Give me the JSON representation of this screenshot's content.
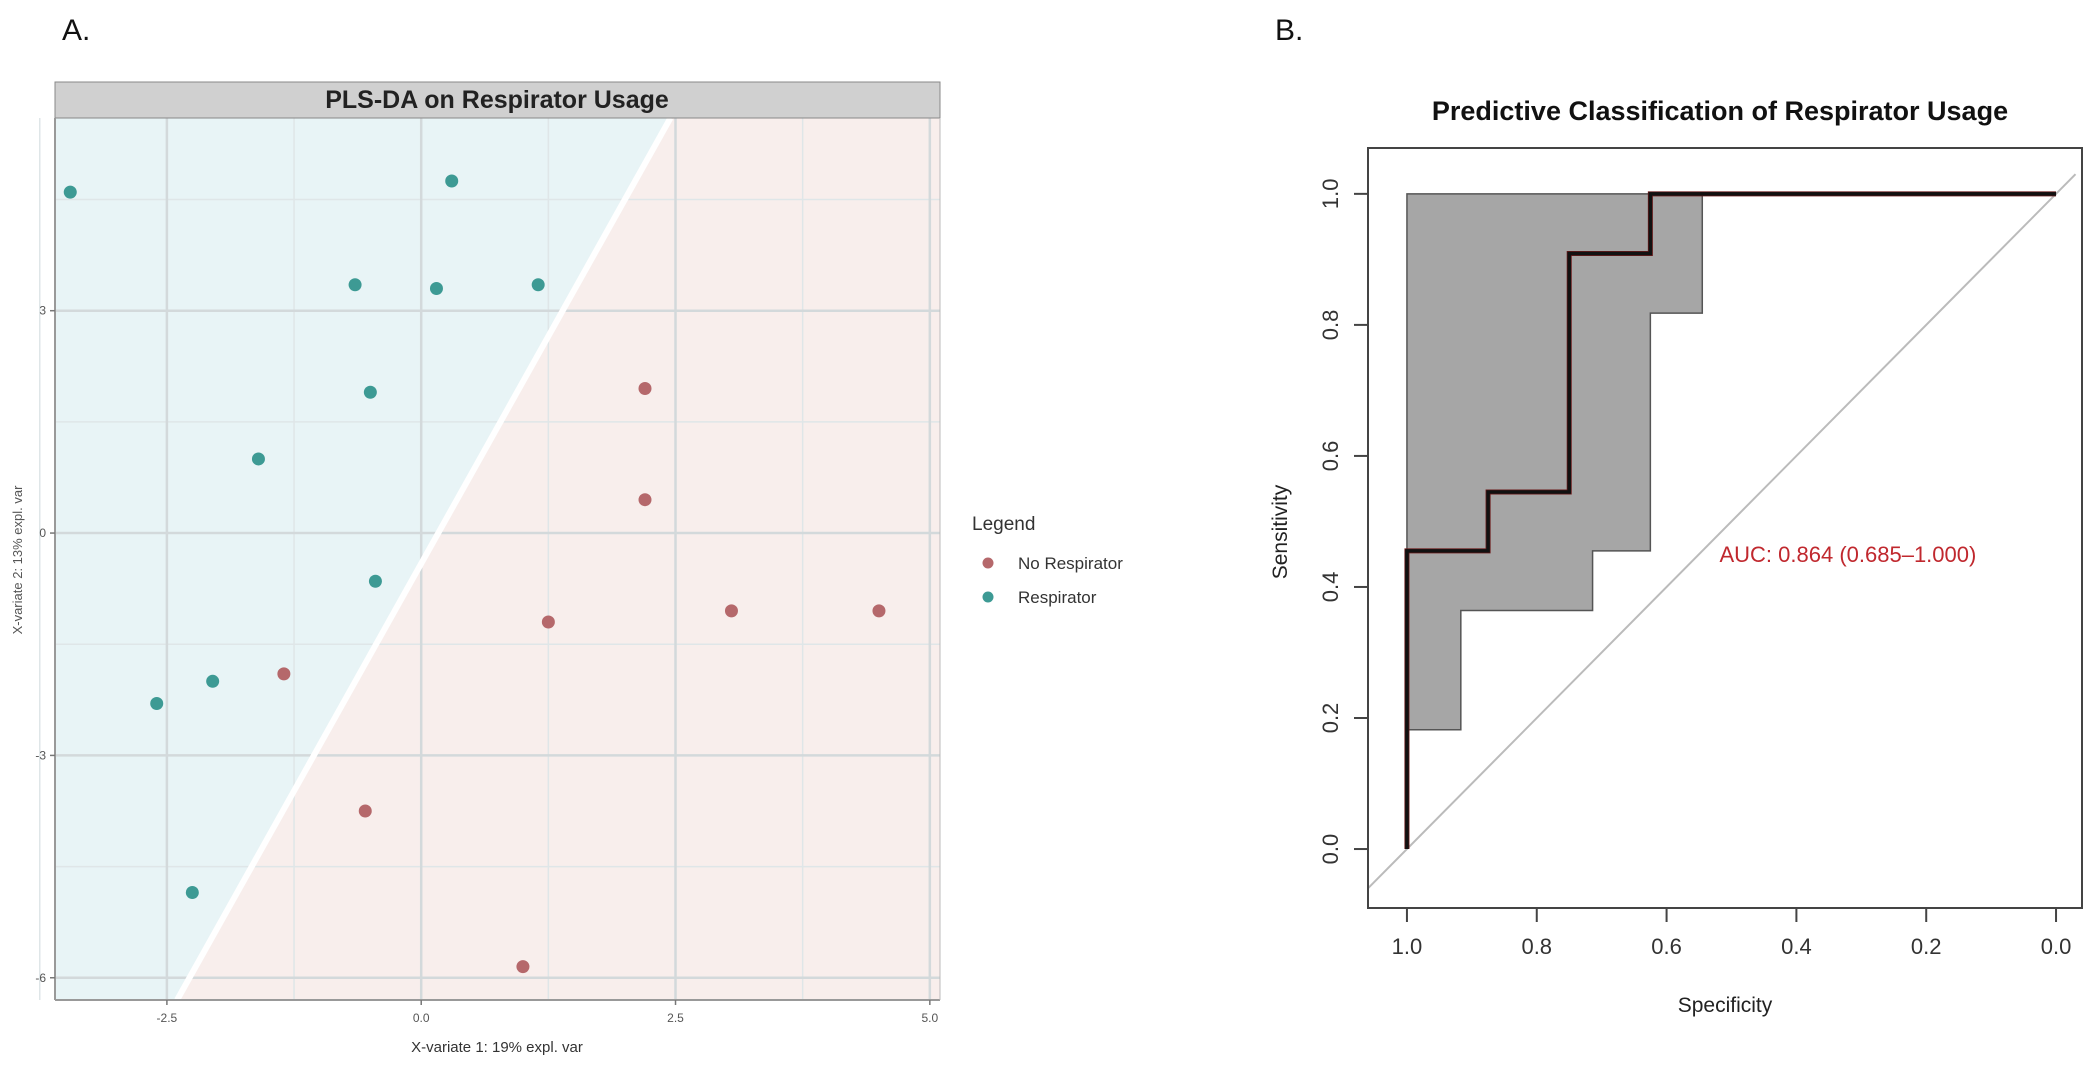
{
  "figure": {
    "panel_a_label": "A.",
    "panel_b_label": "B."
  },
  "chart_data": [
    {
      "type": "scatter",
      "title": "PLS-DA on Respirator Usage",
      "xlabel": "X-variate 1: 19% expl. var",
      "ylabel": "X-variate 2: 13% expl. var",
      "xlim": [
        -3.6,
        5.1
      ],
      "ylim": [
        -6.3,
        5.6
      ],
      "xticks": [
        -2.5,
        0.0,
        2.5,
        5.0
      ],
      "xtick_labels": [
        "-2.5",
        "0.0",
        "2.5",
        "5.0"
      ],
      "yticks": [
        -6,
        -3,
        0,
        3
      ],
      "ytick_labels": [
        "-6",
        "-3",
        "0",
        "3"
      ],
      "grid": true,
      "background_regions": [
        {
          "class": "Respirator",
          "side": "upper-left",
          "color": "#e8f4f6"
        },
        {
          "class": "No Respirator",
          "side": "lower-right",
          "color": "#f8eeec"
        }
      ],
      "decision_boundary": {
        "points": [
          [
            -2.4,
            -6.3
          ],
          [
            2.45,
            5.6
          ]
        ]
      },
      "legend": {
        "title": "Legend",
        "position": "right",
        "entries": [
          {
            "label": "No Respirator",
            "color": "#b5686b"
          },
          {
            "label": "Respirator",
            "color": "#3d9a94"
          }
        ]
      },
      "series": [
        {
          "name": "Respirator",
          "color": "#3d9a94",
          "points": [
            [
              -3.45,
              4.6
            ],
            [
              0.3,
              4.75
            ],
            [
              -0.65,
              3.35
            ],
            [
              0.15,
              3.3
            ],
            [
              1.15,
              3.35
            ],
            [
              -0.5,
              1.9
            ],
            [
              -1.6,
              1.0
            ],
            [
              -0.45,
              -0.65
            ],
            [
              -2.05,
              -2.0
            ],
            [
              -2.6,
              -2.3
            ],
            [
              -2.25,
              -4.85
            ]
          ]
        },
        {
          "name": "No Respirator",
          "color": "#b5686b",
          "points": [
            [
              2.2,
              1.95
            ],
            [
              2.2,
              0.45
            ],
            [
              1.25,
              -1.2
            ],
            [
              3.05,
              -1.05
            ],
            [
              4.5,
              -1.05
            ],
            [
              -1.35,
              -1.9
            ],
            [
              -0.55,
              -3.75
            ],
            [
              1.0,
              -5.85
            ]
          ]
        }
      ]
    },
    {
      "type": "line",
      "title": "Predictive Classification of Respirator Usage",
      "xlabel": "Specificity",
      "ylabel": "Sensitivity",
      "xlim": [
        1.06,
        -0.04
      ],
      "ylim": [
        -0.09,
        1.07
      ],
      "xticks": [
        1.0,
        0.8,
        0.6,
        0.4,
        0.2,
        0.0
      ],
      "xtick_labels": [
        "1.0",
        "0.8",
        "0.6",
        "0.4",
        "0.2",
        "0.0"
      ],
      "yticks": [
        0.0,
        0.2,
        0.4,
        0.6,
        0.8,
        1.0
      ],
      "ytick_labels": [
        "0.0",
        "0.2",
        "0.4",
        "0.6",
        "0.8",
        "1.0"
      ],
      "grid": false,
      "annotation": {
        "text": "AUC: 0.864 (0.685–1.000)",
        "color": "#c0282e",
        "at": [
          0.5,
          0.45
        ]
      },
      "roc_curve": {
        "name": "ROC",
        "color": "#111111",
        "specificity": [
          1.0,
          1.0,
          0.875,
          0.875,
          0.75,
          0.75,
          0.625,
          0.625,
          0.0
        ],
        "sensitivity": [
          0.0,
          0.455,
          0.455,
          0.545,
          0.545,
          0.909,
          0.909,
          1.0,
          1.0
        ]
      },
      "ci_band": {
        "color": "#a6a6a6",
        "upper": {
          "specificity": [
            1.0,
            0.545
          ],
          "sensitivity": [
            1.0,
            1.0
          ]
        },
        "lower": {
          "specificity": [
            0.545,
            0.545,
            0.625,
            0.625,
            0.714,
            0.714,
            0.917,
            0.917,
            1.0,
            1.0
          ],
          "sensitivity": [
            1.0,
            0.818,
            0.818,
            0.455,
            0.455,
            0.364,
            0.364,
            0.182,
            0.182,
            0.0
          ]
        }
      },
      "reference_line": {
        "color": "#bbbbbb",
        "from": [
          1.0,
          0.0
        ],
        "to": [
          0.0,
          1.0
        ]
      }
    }
  ]
}
